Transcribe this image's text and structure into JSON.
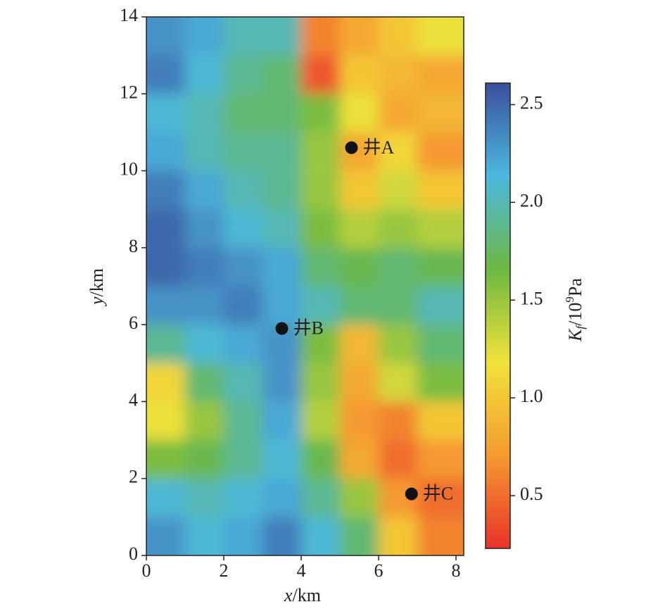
{
  "chart_data": {
    "type": "heatmap",
    "xlabel": [
      "x",
      "/km"
    ],
    "ylabel": [
      "y",
      "/km"
    ],
    "colorbar_label": [
      "K",
      "f",
      "/10",
      "9",
      "Pa"
    ],
    "xbins": [
      0,
      1,
      2,
      3,
      4,
      5,
      6,
      7,
      8.2
    ],
    "ybins": [
      0,
      1,
      2,
      3,
      4,
      5,
      6,
      7,
      8,
      9,
      10,
      11,
      12,
      13,
      14
    ],
    "values": [
      [
        2.3,
        2.1,
        2.2,
        2.4,
        2.1,
        1.8,
        1.0,
        0.6
      ],
      [
        2.1,
        2.0,
        2.1,
        2.2,
        1.9,
        1.5,
        0.7,
        0.5
      ],
      [
        1.6,
        1.7,
        1.9,
        2.1,
        1.7,
        0.8,
        0.5,
        0.7
      ],
      [
        1.2,
        1.5,
        1.9,
        2.2,
        1.4,
        0.7,
        0.6,
        1.0
      ],
      [
        1.1,
        1.8,
        2.0,
        2.3,
        1.5,
        0.8,
        1.3,
        1.6
      ],
      [
        1.9,
        2.1,
        2.2,
        2.3,
        1.6,
        0.9,
        1.5,
        1.8
      ],
      [
        2.3,
        2.3,
        2.4,
        2.2,
        2.0,
        1.8,
        1.8,
        2.0
      ],
      [
        2.5,
        2.4,
        2.3,
        2.2,
        1.8,
        1.7,
        1.8,
        1.7
      ],
      [
        2.5,
        2.3,
        2.1,
        2.0,
        1.6,
        1.4,
        1.5,
        1.4
      ],
      [
        2.4,
        2.2,
        2.0,
        1.9,
        1.5,
        1.0,
        1.3,
        1.0
      ],
      [
        2.2,
        2.0,
        1.9,
        1.9,
        1.5,
        0.8,
        1.1,
        0.7
      ],
      [
        2.1,
        2.0,
        1.8,
        1.8,
        1.6,
        1.2,
        0.8,
        0.9
      ],
      [
        2.4,
        2.1,
        1.9,
        1.8,
        0.4,
        1.0,
        0.9,
        0.8
      ],
      [
        2.3,
        2.2,
        2.0,
        2.0,
        0.6,
        0.8,
        1.0,
        1.2
      ]
    ],
    "colors": [
      "#e8322b",
      "#f59a30",
      "#f1e23a",
      "#6cb842",
      "#4cb8df",
      "#3a4f9c"
    ],
    "clim": [
      0.23,
      2.61
    ],
    "cticks": [
      0.5,
      1.0,
      1.5,
      2.0,
      2.5
    ],
    "xlim": [
      0,
      8.2
    ],
    "xticks": [
      0,
      2,
      4,
      6,
      8
    ],
    "ylim": [
      0,
      14
    ],
    "yticks": [
      0,
      2,
      4,
      6,
      8,
      10,
      12,
      14
    ],
    "wells": {
      "labels": [
        "井A",
        "井B",
        "井C"
      ],
      "x": [
        5.3,
        3.5,
        6.85
      ],
      "y": [
        10.6,
        5.9,
        1.6
      ],
      "color": "#111111"
    }
  }
}
